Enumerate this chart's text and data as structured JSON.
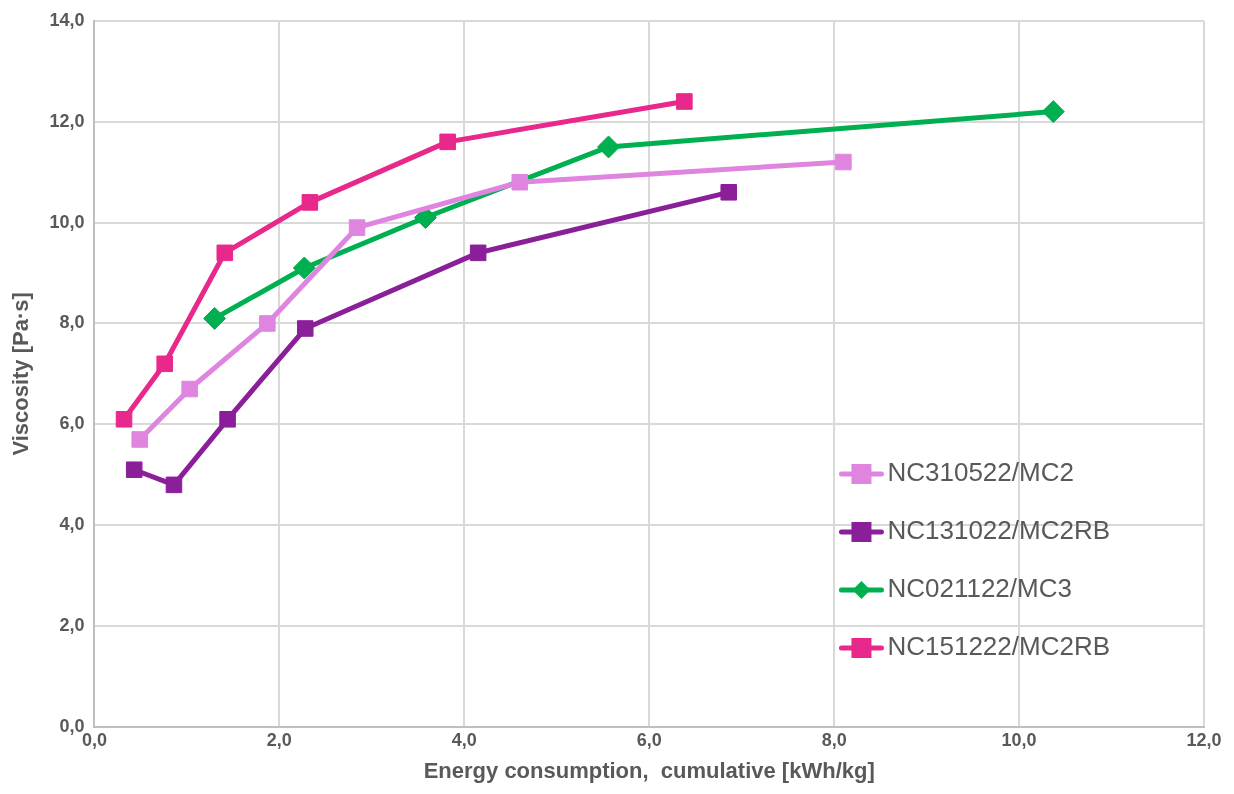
{
  "chart_data": {
    "type": "line",
    "xlabel": "Energy consumption,  cumulative [kWh/kg]",
    "ylabel": "Viscosity [Pa·s]",
    "xlim": [
      0,
      12
    ],
    "ylim": [
      0,
      14
    ],
    "xticks": [
      {
        "value": 0,
        "label": "0,0"
      },
      {
        "value": 2,
        "label": "2,0"
      },
      {
        "value": 4,
        "label": "4,0"
      },
      {
        "value": 6,
        "label": "6,0"
      },
      {
        "value": 8,
        "label": "8,0"
      },
      {
        "value": 10,
        "label": "10,0"
      },
      {
        "value": 12,
        "label": "12,0"
      }
    ],
    "yticks": [
      {
        "value": 0,
        "label": "0,0"
      },
      {
        "value": 2,
        "label": "2,0"
      },
      {
        "value": 4,
        "label": "4,0"
      },
      {
        "value": 6,
        "label": "6,0"
      },
      {
        "value": 8,
        "label": "8,0"
      },
      {
        "value": 10,
        "label": "10,0"
      },
      {
        "value": 12,
        "label": "12,0"
      },
      {
        "value": 14,
        "label": "14,0"
      }
    ],
    "grid": true,
    "legend": "bottom right",
    "line_style": "solid",
    "series": [
      {
        "name": "NC310522/MC2",
        "color": "#df85e0",
        "marker": "square",
        "x": [
          0.49,
          1.03,
          1.87,
          2.84,
          4.6,
          8.1
        ],
        "values": [
          5.7,
          6.7,
          8.0,
          9.9,
          10.8,
          11.2
        ]
      },
      {
        "name": "NC131022/MC2RB",
        "color": "#8b1f9a",
        "marker": "square",
        "x": [
          0.43,
          0.86,
          1.44,
          2.28,
          4.15,
          6.86
        ],
        "values": [
          5.1,
          4.8,
          6.1,
          7.9,
          9.4,
          10.6
        ]
      },
      {
        "name": "NC021122/MC3",
        "color": "#00b050",
        "marker": "diamond",
        "x": [
          1.3,
          2.27,
          3.58,
          5.56,
          10.37
        ],
        "values": [
          8.1,
          9.1,
          10.1,
          11.5,
          12.2
        ]
      },
      {
        "name": "NC151222/MC2RB",
        "color": "#e8288a",
        "marker": "square",
        "x": [
          0.32,
          0.76,
          1.41,
          2.33,
          3.82,
          6.38
        ],
        "values": [
          6.1,
          7.2,
          9.4,
          10.4,
          11.6,
          12.4
        ]
      }
    ]
  }
}
